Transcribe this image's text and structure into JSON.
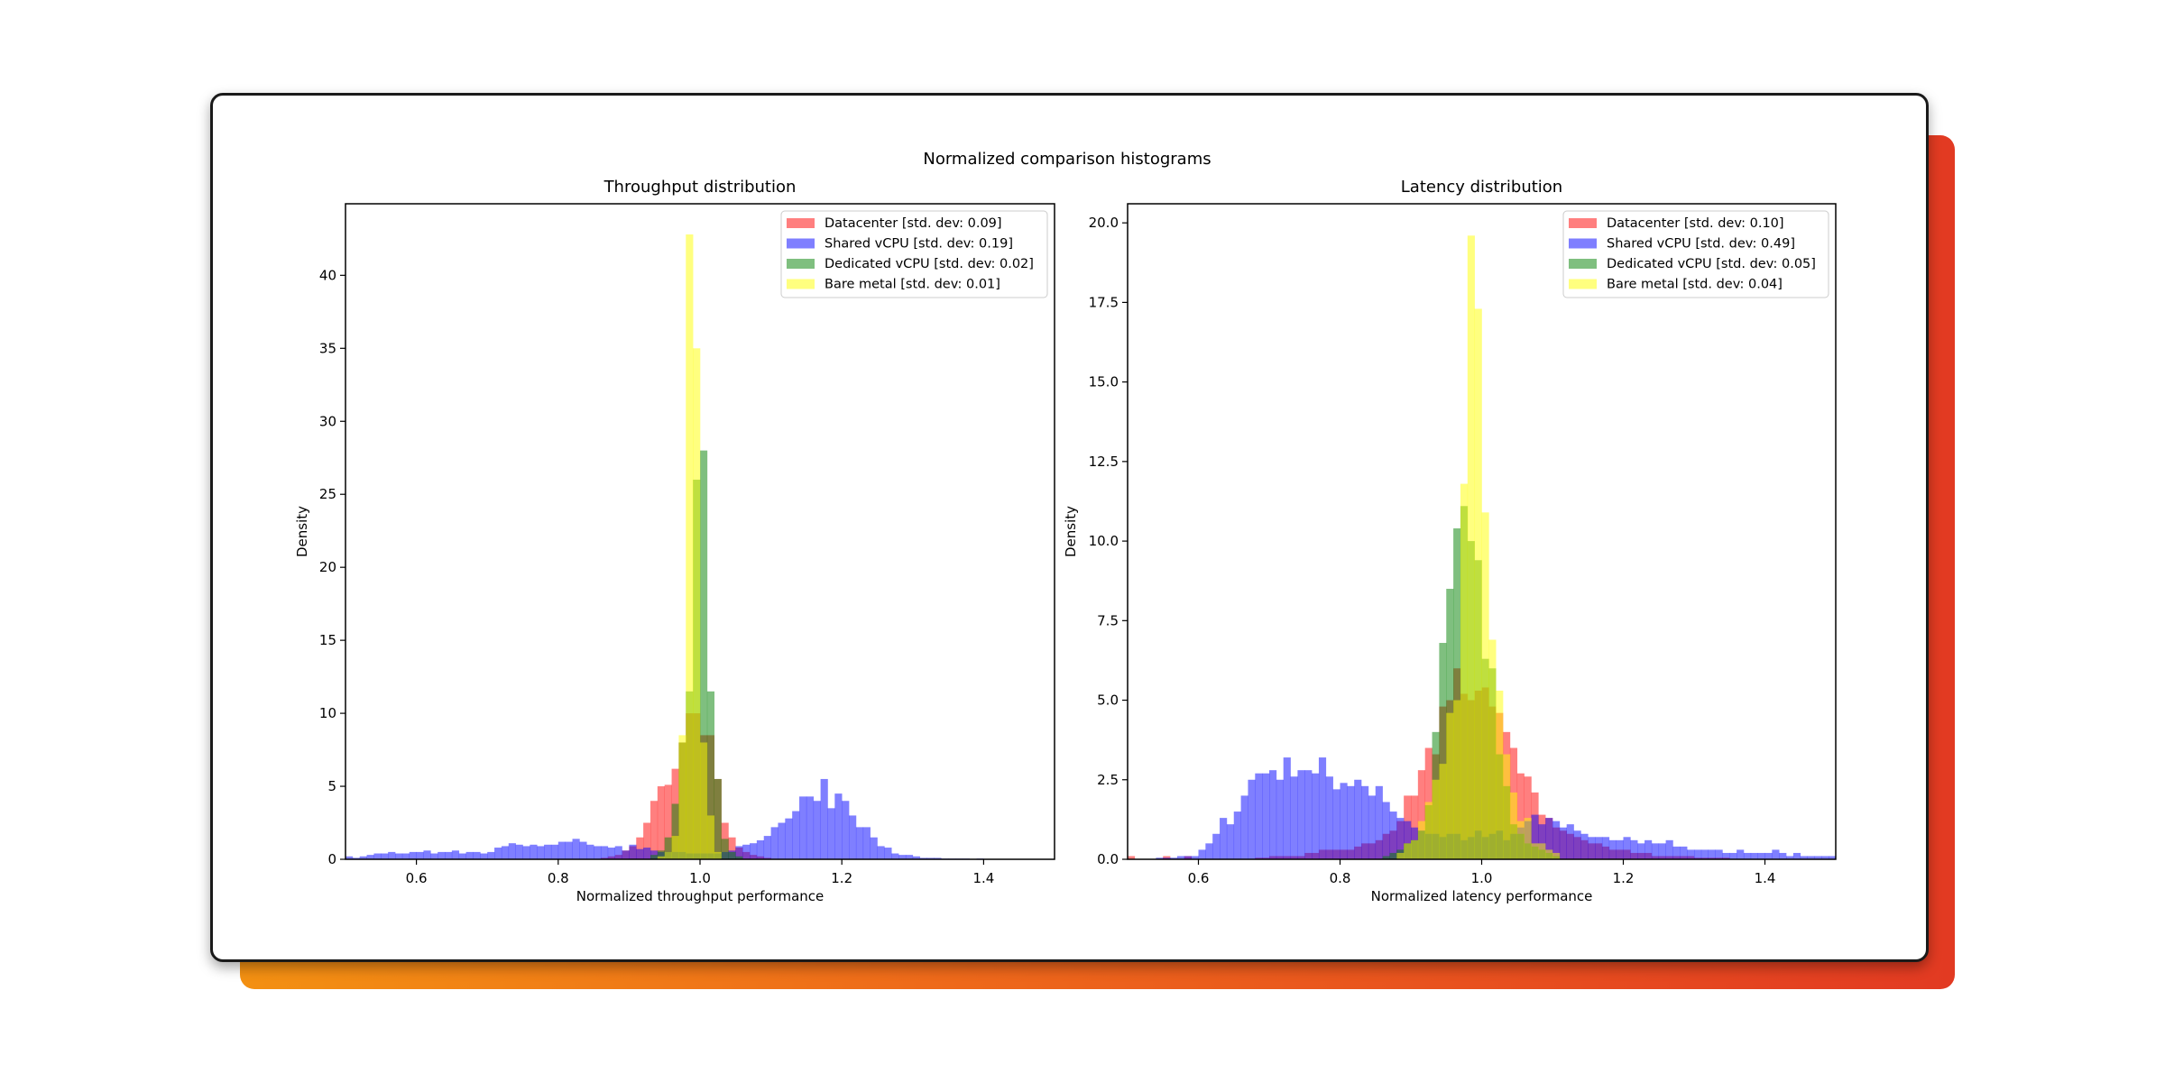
{
  "suptitle": "Normalized comparison histograms",
  "chart_data": [
    {
      "type": "bar",
      "title": "Throughput distribution",
      "xlabel": "Normalized throughput performance",
      "ylabel": "Density",
      "xlim": [
        0.5,
        1.5
      ],
      "ylim": [
        0,
        44.9
      ],
      "xticks": [
        0.6,
        0.8,
        1.0,
        1.2,
        1.4
      ],
      "xtick_labels": [
        "0.6",
        "0.8",
        "1.0",
        "1.2",
        "1.4"
      ],
      "yticks": [
        0,
        5,
        10,
        15,
        20,
        25,
        30,
        35,
        40
      ],
      "ytick_labels": [
        "0",
        "5",
        "10",
        "15",
        "20",
        "25",
        "30",
        "35",
        "40"
      ],
      "legend_position": "top-right",
      "grid": false,
      "series": [
        {
          "name": "Datacenter [std. dev: 0.09]",
          "color": "#ff0000",
          "bin_start": 0.86,
          "bin_width": 0.01,
          "values": [
            0.1,
            0.2,
            0.3,
            0.6,
            0.9,
            1.5,
            2.5,
            4.0,
            5.0,
            5.1,
            6.2,
            8.0,
            10.0,
            10.0,
            8.5,
            8.5,
            5.5,
            2.5,
            1.5,
            0.8,
            0.5,
            0.3,
            0.2,
            0.1
          ]
        },
        {
          "name": "Shared vCPU [std. dev: 0.19]",
          "color": "#0000ff",
          "bin_start": 0.5,
          "bin_width": 0.01,
          "values": [
            0.2,
            0.1,
            0.2,
            0.3,
            0.4,
            0.4,
            0.5,
            0.4,
            0.4,
            0.5,
            0.5,
            0.6,
            0.4,
            0.5,
            0.5,
            0.6,
            0.4,
            0.5,
            0.5,
            0.4,
            0.5,
            0.8,
            0.9,
            1.1,
            1.0,
            0.9,
            1.0,
            0.9,
            1.0,
            1.0,
            1.2,
            1.2,
            1.4,
            1.2,
            1.0,
            0.9,
            0.9,
            0.8,
            0.9,
            0.6,
            1.0,
            0.7,
            0.8,
            0.6,
            0.5,
            0.5,
            0.5,
            0.5,
            0.4,
            0.4,
            0.4,
            0.4,
            0.4,
            0.5,
            0.6,
            0.9,
            1.0,
            1.1,
            1.3,
            1.6,
            2.2,
            2.5,
            2.8,
            3.3,
            4.3,
            4.3,
            4.0,
            5.5,
            3.5,
            4.5,
            4.0,
            3.0,
            2.2,
            2.2,
            1.5,
            0.9,
            0.8,
            0.4,
            0.3,
            0.3,
            0.2,
            0.1,
            0.1,
            0.1,
            0.05,
            0.05,
            0.05,
            0.05,
            0.0,
            0.05,
            0.0,
            0.0,
            0.0,
            0.0,
            0.0,
            0.0,
            0.0,
            0.0,
            0.0,
            0.0
          ]
        },
        {
          "name": "Dedicated vCPU [std. dev: 0.02]",
          "color": "#008000",
          "bin_start": 0.93,
          "bin_width": 0.01,
          "values": [
            0.3,
            0.6,
            1.5,
            3.8,
            8.0,
            11.5,
            26.0,
            28.0,
            11.5,
            5.5,
            1.4,
            0.5,
            0.2
          ]
        },
        {
          "name": "Bare metal [std. dev: 0.01]",
          "color": "#ffff00",
          "bin_start": 0.94,
          "bin_width": 0.01,
          "values": [
            0.2,
            0.5,
            1.6,
            8.5,
            42.8,
            35.0,
            8.0,
            3.0,
            0.5
          ]
        }
      ]
    },
    {
      "type": "bar",
      "title": "Latency distribution",
      "xlabel": "Normalized latency performance",
      "ylabel": "Density",
      "xlim": [
        0.5,
        1.5
      ],
      "ylim": [
        0,
        20.6
      ],
      "xticks": [
        0.6,
        0.8,
        1.0,
        1.2,
        1.4
      ],
      "xtick_labels": [
        "0.6",
        "0.8",
        "1.0",
        "1.2",
        "1.4"
      ],
      "yticks": [
        0,
        2.5,
        5,
        7.5,
        10,
        12.5,
        15,
        17.5,
        20
      ],
      "ytick_labels": [
        "0.0",
        "2.5",
        "5.0",
        "7.5",
        "10.0",
        "12.5",
        "15.0",
        "17.5",
        "20.0"
      ],
      "legend_position": "top-right",
      "grid": false,
      "series": [
        {
          "name": "Datacenter [std. dev: 0.10]",
          "color": "#ff0000",
          "bin_start": 0.5,
          "bin_width": 0.01,
          "values": [
            0.1,
            0,
            0,
            0,
            0,
            0.1,
            0,
            0,
            0.1,
            0,
            0,
            0,
            0,
            0,
            0,
            0,
            0,
            0,
            0.05,
            0.05,
            0.1,
            0.1,
            0.1,
            0.1,
            0.1,
            0.2,
            0.2,
            0.3,
            0.3,
            0.3,
            0.3,
            0.3,
            0.4,
            0.5,
            0.5,
            0.6,
            0.8,
            0.9,
            1.2,
            2.0,
            2.0,
            2.8,
            3.5,
            3.3,
            4.8,
            5.0,
            6.0,
            5.2,
            5.0,
            5.3,
            5.4,
            4.8,
            4.6,
            4.0,
            3.5,
            2.7,
            2.6,
            2.1,
            1.4,
            1.3,
            1.0,
            0.9,
            0.8,
            0.7,
            0.6,
            0.5,
            0.5,
            0.4,
            0.3,
            0.3,
            0.3,
            0.2,
            0.2,
            0.2,
            0.1,
            0.1,
            0.1,
            0.1,
            0.1,
            0.1,
            0.05,
            0.05,
            0.05,
            0.05,
            0.05,
            0,
            0,
            0,
            0,
            0,
            0,
            0,
            0,
            0,
            0,
            0,
            0,
            0,
            0,
            0
          ]
        },
        {
          "name": "Shared vCPU [std. dev: 0.49]",
          "color": "#0000ff",
          "bin_start": 0.5,
          "bin_width": 0.01,
          "values": [
            0,
            0,
            0,
            0,
            0.05,
            0.05,
            0.05,
            0.1,
            0.1,
            0.1,
            0.3,
            0.5,
            0.8,
            1.3,
            1.1,
            1.5,
            2.0,
            2.5,
            2.7,
            2.7,
            2.8,
            2.5,
            3.2,
            2.6,
            2.8,
            2.8,
            2.7,
            3.2,
            2.6,
            2.2,
            2.4,
            2.3,
            2.5,
            2.3,
            2.0,
            2.3,
            1.8,
            1.5,
            1.3,
            1.2,
            1.0,
            0.9,
            0.8,
            0.8,
            0.7,
            0.8,
            0.8,
            0.6,
            0.7,
            0.9,
            0.7,
            0.8,
            0.9,
            0.6,
            0.8,
            1.0,
            1.2,
            1.4,
            1.1,
            1.3,
            1.2,
            1.0,
            1.1,
            0.9,
            0.8,
            0.7,
            0.7,
            0.7,
            0.6,
            0.6,
            0.7,
            0.6,
            0.5,
            0.6,
            0.5,
            0.5,
            0.6,
            0.4,
            0.4,
            0.3,
            0.3,
            0.3,
            0.3,
            0.3,
            0.2,
            0.2,
            0.3,
            0.2,
            0.2,
            0.2,
            0.2,
            0.3,
            0.2,
            0.1,
            0.2,
            0.1,
            0.1,
            0.1,
            0.1,
            0.1
          ]
        },
        {
          "name": "Dedicated vCPU [std. dev: 0.05]",
          "color": "#008000",
          "bin_start": 0.86,
          "bin_width": 0.01,
          "values": [
            0.1,
            0.2,
            0.3,
            0.5,
            0.6,
            0.9,
            1.7,
            4.0,
            6.8,
            8.5,
            10.4,
            11.1,
            10.0,
            9.4,
            6.3,
            6.0,
            3.3,
            2.3,
            1.1,
            0.8,
            0.5,
            0.4,
            0.3,
            0.2,
            0.1
          ]
        },
        {
          "name": "Bare metal [std. dev: 0.04]",
          "color": "#ffff00",
          "bin_start": 0.88,
          "bin_width": 0.01,
          "values": [
            0.2,
            0.5,
            0.6,
            1.2,
            1.8,
            2.5,
            3.0,
            4.6,
            5.0,
            11.8,
            19.6,
            17.3,
            10.9,
            6.9,
            5.3,
            3.3,
            2.1,
            1.2,
            1.3,
            0.5,
            0.5,
            0.3,
            0.2
          ]
        }
      ]
    }
  ]
}
